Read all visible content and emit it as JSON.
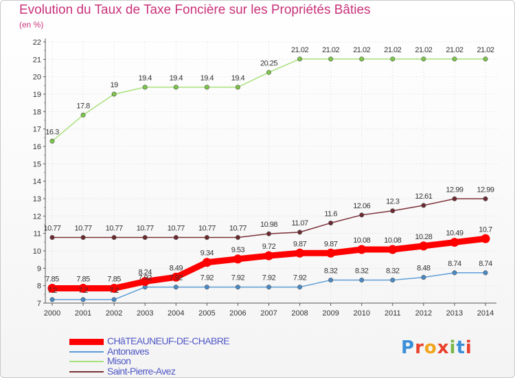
{
  "chart_data": {
    "type": "line",
    "title": "Evolution du Taux de Taxe Foncière sur les Propriétés Bâties",
    "ylabel": "(en %)",
    "xlabel": "",
    "x": [
      "2000",
      "2001",
      "2002",
      "2003",
      "2004",
      "2005",
      "2006",
      "2007",
      "2008",
      "2009",
      "2010",
      "2011",
      "2012",
      "2013",
      "2014"
    ],
    "ylim": [
      7,
      22
    ],
    "yticks": [
      7,
      8,
      9,
      10,
      11,
      12,
      13,
      14,
      15,
      16,
      17,
      18,
      19,
      20,
      21,
      22
    ],
    "grid": true,
    "legend_position": "bottom-left",
    "series": [
      {
        "name": "CHâTEAUNEUF-DE-CHABRE",
        "color": "#ff0000",
        "marker_color": "#ff0000",
        "emphasis": true,
        "values": [
          7.85,
          7.85,
          7.85,
          8.24,
          8.49,
          9.34,
          9.53,
          9.72,
          9.87,
          9.87,
          10.08,
          10.08,
          10.28,
          10.49,
          10.7
        ],
        "labels": [
          "7.85",
          "7.85",
          "7.85",
          "8.24",
          "8.49",
          "9.34",
          "9.53",
          "9.72",
          "9.87",
          "9.87",
          "10.08",
          "10.08",
          "10.28",
          "10.49",
          "10.7"
        ]
      },
      {
        "name": "Antonaves",
        "color": "#5b9bd5",
        "marker_color": "#4a8ac4",
        "values": [
          7.2,
          7.2,
          7.2,
          7.92,
          7.92,
          7.92,
          7.92,
          7.92,
          7.92,
          8.32,
          8.32,
          8.32,
          8.48,
          8.74,
          8.74
        ],
        "labels": [
          "7.2",
          "7.2",
          "7.2",
          "7.92",
          "7.92",
          "7.92",
          "7.92",
          "7.92",
          "7.92",
          "8.32",
          "8.32",
          "8.32",
          "8.48",
          "8.74",
          "8.74"
        ]
      },
      {
        "name": "Mison",
        "color": "#a8e07a",
        "marker_color": "#7cc44a",
        "values": [
          16.3,
          17.8,
          19,
          19.4,
          19.4,
          19.4,
          19.4,
          20.25,
          21.02,
          21.02,
          21.02,
          21.02,
          21.02,
          21.02,
          21.02
        ],
        "labels": [
          "16.3",
          "17.8",
          "19",
          "19.4",
          "19.4",
          "19.4",
          "19.4",
          "20.25",
          "21.02",
          "21.02",
          "21.02",
          "21.02",
          "21.02",
          "21.02",
          "21.02"
        ]
      },
      {
        "name": "Saint-Pierre-Avez",
        "color": "#7a2e36",
        "marker_color": "#6b2a30",
        "values": [
          10.77,
          10.77,
          10.77,
          10.77,
          10.77,
          10.77,
          10.77,
          10.98,
          11.07,
          11.6,
          12.06,
          12.3,
          12.61,
          12.99,
          12.99
        ],
        "labels": [
          "10.77",
          "10.77",
          "10.77",
          "10.77",
          "10.77",
          "10.77",
          "10.77",
          "10.98",
          "11.07",
          "11.6",
          "12.06",
          "12.3",
          "12.61",
          "12.99",
          "12.99"
        ]
      }
    ]
  },
  "brand": {
    "letters": [
      "P",
      "r",
      "o",
      "x",
      "i",
      "t",
      "i"
    ],
    "colors": [
      "#3a8fd9",
      "#e8402a",
      "#f0a51c",
      "#e8402a",
      "#7ab648",
      "#3a8fd9",
      "#e8402a"
    ]
  }
}
